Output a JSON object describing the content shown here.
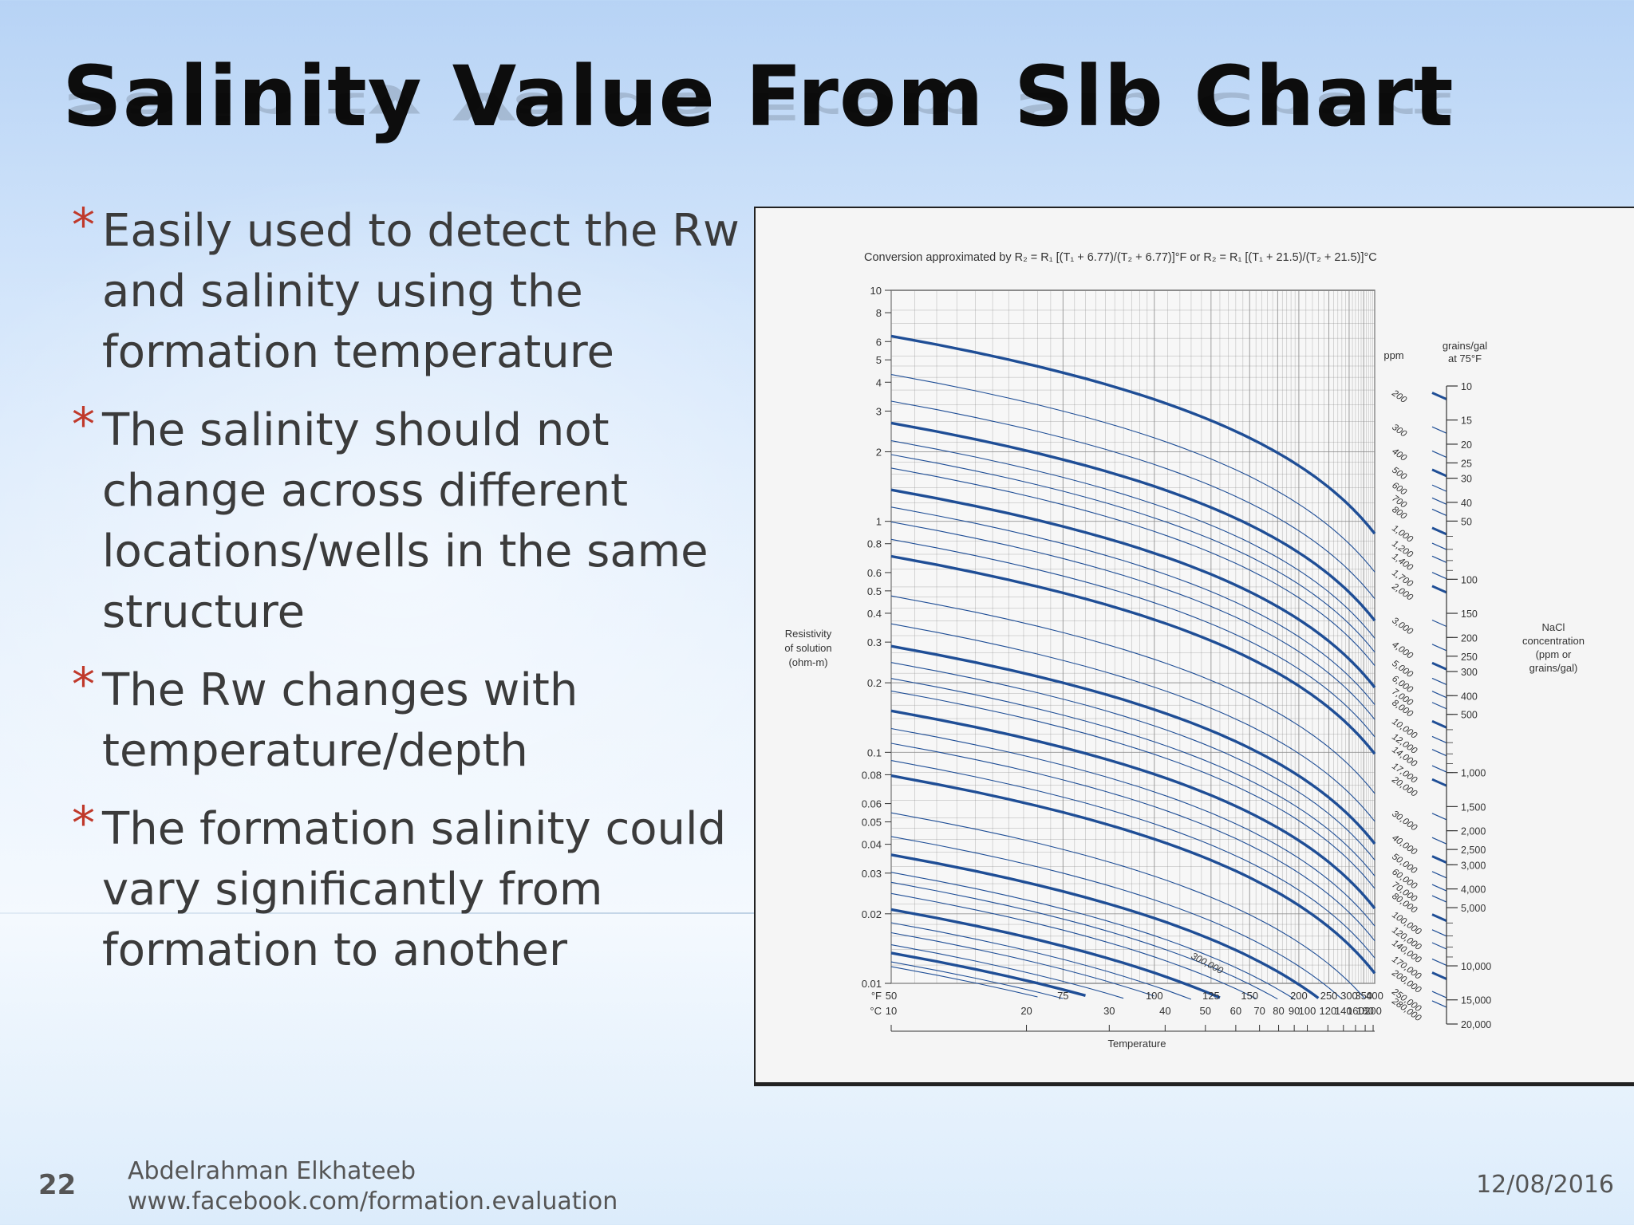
{
  "slide": {
    "title": "Salinity Value From Slb Chart",
    "bullets": [
      "Easily used to detect the Rw and salinity using the formation temperature",
      "The salinity should not change across different locations/wells in the same structure",
      "The Rw changes with temperature/depth",
      "The formation salinity could vary significantly from formation to another"
    ],
    "bullet_marker": "*",
    "page_number": "22",
    "author": "Abdelrahman Elkhateeb",
    "url": "www.facebook.com/formation.evaluation",
    "date": "12/08/2016",
    "colors": {
      "line": "#1f4e96",
      "bullet_star": "#c0392b",
      "grid": "#8a8a8a"
    }
  },
  "chart_data": {
    "type": "line",
    "title": "Conversion approximated by R₂ = R₁ [(T₁ + 6.77)/(T₂ + 6.77)]°F or R₂ = R₁ [(T₁ + 21.5)/(T₂ + 21.5)]°C",
    "xlabel": "Temperature",
    "ylabel": "Resistivity of solution (ohm-m)",
    "x_scale": "reciprocal",
    "y_scale": "log",
    "xlim_F": [
      50,
      400
    ],
    "ylim": [
      0.01,
      10
    ],
    "grid": true,
    "x_ticks_F": [
      "50",
      "75",
      "100",
      "125",
      "150",
      "200",
      "250",
      "300",
      "350",
      "400"
    ],
    "x_ticks_F_values": [
      50,
      75,
      100,
      125,
      150,
      200,
      250,
      300,
      350,
      400
    ],
    "x_ticks_C": [
      "10",
      "20",
      "30",
      "40",
      "50",
      "60",
      "70",
      "80",
      "90",
      "100",
      "120",
      "140",
      "160",
      "180",
      "200"
    ],
    "x_ticks_C_values": [
      10,
      20,
      30,
      40,
      50,
      60,
      70,
      80,
      90,
      100,
      120,
      140,
      160,
      180,
      200
    ],
    "x_unit_F": "°F",
    "x_unit_C": "°C",
    "y_ticks": [
      "10",
      "8",
      "6",
      "5",
      "4",
      "3",
      "2",
      "1",
      "0.8",
      "0.6",
      "0.5",
      "0.4",
      "0.3",
      "0.2",
      "0.1",
      "0.08",
      "0.06",
      "0.05",
      "0.04",
      "0.03",
      "0.02",
      "0.01"
    ],
    "y_tick_values": [
      10,
      8,
      6,
      5,
      4,
      3,
      2,
      1,
      0.8,
      0.6,
      0.5,
      0.4,
      0.3,
      0.2,
      0.1,
      0.08,
      0.06,
      0.05,
      0.04,
      0.03,
      0.02,
      0.01
    ],
    "series_note": "Each line is a constant NaCl concentration; R at 75°F given, R(T) = R75 × (75 + 6.77)/(T + 6.77)",
    "series": [
      {
        "ppm": 200,
        "R75": 4.4,
        "bold": true
      },
      {
        "ppm": 300,
        "R75": 3.0,
        "bold": false
      },
      {
        "ppm": 400,
        "R75": 2.3,
        "bold": false
      },
      {
        "ppm": 500,
        "R75": 1.85,
        "bold": true
      },
      {
        "ppm": 600,
        "R75": 1.55,
        "bold": false
      },
      {
        "ppm": 700,
        "R75": 1.35,
        "bold": false
      },
      {
        "ppm": 800,
        "R75": 1.18,
        "bold": false
      },
      {
        "ppm": 1000,
        "R75": 0.95,
        "bold": true
      },
      {
        "ppm": 1200,
        "R75": 0.8,
        "bold": false
      },
      {
        "ppm": 1400,
        "R75": 0.69,
        "bold": false
      },
      {
        "ppm": 1700,
        "R75": 0.58,
        "bold": false
      },
      {
        "ppm": 2000,
        "R75": 0.49,
        "bold": true
      },
      {
        "ppm": 3000,
        "R75": 0.33,
        "bold": false
      },
      {
        "ppm": 4000,
        "R75": 0.25,
        "bold": false
      },
      {
        "ppm": 5000,
        "R75": 0.2,
        "bold": true
      },
      {
        "ppm": 6000,
        "R75": 0.17,
        "bold": false
      },
      {
        "ppm": 7000,
        "R75": 0.145,
        "bold": false
      },
      {
        "ppm": 8000,
        "R75": 0.128,
        "bold": false
      },
      {
        "ppm": 10000,
        "R75": 0.105,
        "bold": true
      },
      {
        "ppm": 12000,
        "R75": 0.088,
        "bold": false
      },
      {
        "ppm": 14000,
        "R75": 0.076,
        "bold": false
      },
      {
        "ppm": 17000,
        "R75": 0.064,
        "bold": false
      },
      {
        "ppm": 20000,
        "R75": 0.055,
        "bold": true
      },
      {
        "ppm": 30000,
        "R75": 0.038,
        "bold": false
      },
      {
        "ppm": 40000,
        "R75": 0.03,
        "bold": false
      },
      {
        "ppm": 50000,
        "R75": 0.025,
        "bold": true
      },
      {
        "ppm": 60000,
        "R75": 0.021,
        "bold": false
      },
      {
        "ppm": 70000,
        "R75": 0.019,
        "bold": false
      },
      {
        "ppm": 80000,
        "R75": 0.017,
        "bold": false
      },
      {
        "ppm": 100000,
        "R75": 0.0145,
        "bold": true
      },
      {
        "ppm": 120000,
        "R75": 0.0127,
        "bold": false
      },
      {
        "ppm": 140000,
        "R75": 0.0115,
        "bold": false
      },
      {
        "ppm": 170000,
        "R75": 0.0102,
        "bold": false
      },
      {
        "ppm": 200000,
        "R75": 0.0094,
        "bold": true
      },
      {
        "ppm": 250000,
        "R75": 0.0086,
        "bold": false
      },
      {
        "ppm": 280000,
        "R75": 0.0082,
        "bold": false
      }
    ],
    "ppm_axis_title": "ppm",
    "ppm_labels": [
      "200",
      "300",
      "400",
      "500",
      "600",
      "700",
      "800",
      "1,000",
      "1,200",
      "1,400",
      "1,700",
      "2,000",
      "3,000",
      "4,000",
      "5,000",
      "6,000",
      "7,000",
      "8,000",
      "10,000",
      "12,000",
      "14,000",
      "17,000",
      "20,000",
      "30,000",
      "40,000",
      "50,000",
      "60,000",
      "70,000",
      "80,000",
      "100,000",
      "120,000",
      "140,000",
      "170,000",
      "200,000",
      "250,000",
      "280,000"
    ],
    "ppm_label_values": [
      200,
      300,
      400,
      500,
      600,
      700,
      800,
      1000,
      1200,
      1400,
      1700,
      2000,
      3000,
      4000,
      5000,
      6000,
      7000,
      8000,
      10000,
      12000,
      14000,
      17000,
      20000,
      30000,
      40000,
      50000,
      60000,
      70000,
      80000,
      100000,
      120000,
      140000,
      170000,
      200000,
      250000,
      280000
    ],
    "curve_annotation": "300,000",
    "grains_axis_title": "grains/gal at 75°F",
    "grains_labels": [
      "10",
      "15",
      "20",
      "25",
      "30",
      "40",
      "50",
      "100",
      "150",
      "200",
      "250",
      "300",
      "400",
      "500",
      "1,000",
      "1,500",
      "2,000",
      "2,500",
      "3,000",
      "4,000",
      "5,000",
      "10,000",
      "15,000",
      "20,000"
    ],
    "grains_label_values": [
      10,
      15,
      20,
      25,
      30,
      40,
      50,
      100,
      150,
      200,
      250,
      300,
      400,
      500,
      1000,
      1500,
      2000,
      2500,
      3000,
      4000,
      5000,
      10000,
      15000,
      20000
    ],
    "right_axis_label": "NaCl concentration (ppm or grains/gal)"
  }
}
